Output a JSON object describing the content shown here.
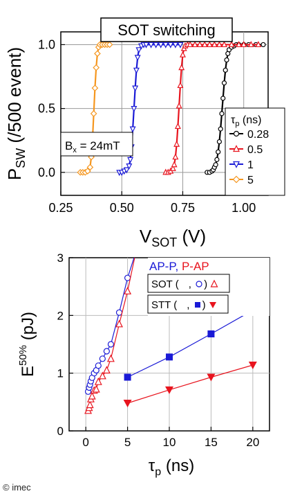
{
  "credit": "© imec",
  "chart_data": [
    {
      "type": "scatter",
      "title": "SOT switching",
      "xlabel_main": "V",
      "xlabel_sub": "SOT",
      "xlabel_unit": " (V)",
      "ylabel_main": "P",
      "ylabel_sub": "SW",
      "ylabel_unit": " (/500 event)",
      "xlim": [
        0.25,
        1.1
      ],
      "ylim": [
        -0.18,
        1.1
      ],
      "xticks": [
        0.25,
        0.5,
        0.75,
        1.0
      ],
      "xtick_labels": [
        "0.25",
        "0.50",
        "0.75",
        "1.00"
      ],
      "yticks": [
        0.0,
        0.5,
        1.0
      ],
      "ytick_labels": [
        "0.0",
        "0.5",
        "1.0"
      ],
      "grid": true,
      "annotation": {
        "main": "B",
        "sub": "x",
        "rest": " = 24mT"
      },
      "legend": {
        "title_main": "τ",
        "title_sub": "p",
        "title_rest": " (ns)",
        "position": "right"
      },
      "series": [
        {
          "name": "0.28",
          "color": "#000000",
          "marker": "circle",
          "x": [
            0.85,
            0.86,
            0.87,
            0.875,
            0.88,
            0.885,
            0.89,
            0.895,
            0.9,
            0.905,
            0.91,
            0.915,
            0.92,
            0.925,
            0.93,
            0.935,
            0.94,
            0.95,
            0.96,
            0.97,
            0.98,
            1.0,
            1.02,
            1.05,
            1.08
          ],
          "y": [
            0.0,
            0.0,
            0.01,
            0.02,
            0.04,
            0.06,
            0.1,
            0.16,
            0.24,
            0.34,
            0.46,
            0.58,
            0.7,
            0.8,
            0.88,
            0.93,
            0.96,
            0.98,
            0.99,
            1.0,
            1.0,
            1.0,
            1.0,
            1.0,
            1.0
          ]
        },
        {
          "name": "0.5",
          "color": "#e8141e",
          "marker": "triangle-up",
          "x": [
            0.68,
            0.69,
            0.7,
            0.71,
            0.715,
            0.72,
            0.725,
            0.73,
            0.735,
            0.74,
            0.745,
            0.75,
            0.755,
            0.76,
            0.77,
            0.78,
            0.8,
            0.82,
            0.84,
            0.86,
            0.88,
            0.9,
            0.92,
            0.95,
            0.98,
            1.0,
            1.03,
            1.06
          ],
          "y": [
            0.0,
            0.0,
            0.01,
            0.03,
            0.06,
            0.12,
            0.22,
            0.36,
            0.52,
            0.68,
            0.82,
            0.92,
            0.97,
            0.99,
            1.0,
            1.0,
            1.0,
            1.0,
            1.0,
            1.0,
            1.0,
            1.0,
            1.0,
            1.0,
            1.0,
            1.0,
            1.0,
            1.0
          ]
        },
        {
          "name": "1",
          "color": "#1a1ad6",
          "marker": "triangle-down",
          "x": [
            0.49,
            0.5,
            0.51,
            0.52,
            0.53,
            0.535,
            0.54,
            0.545,
            0.55,
            0.555,
            0.56,
            0.565,
            0.57,
            0.58,
            0.59,
            0.6,
            0.62,
            0.64,
            0.66,
            0.68,
            0.7,
            0.72,
            0.74
          ],
          "y": [
            0.0,
            0.0,
            0.01,
            0.02,
            0.05,
            0.1,
            0.2,
            0.34,
            0.5,
            0.66,
            0.8,
            0.9,
            0.96,
            0.99,
            1.0,
            1.0,
            1.0,
            1.0,
            1.0,
            1.0,
            1.0,
            1.0,
            1.0
          ],
          "line": "x: [0.49,0.50,0.51,0.52,0.53,0.535,0.54,0.545,0.55,0.555,0.56,0.565,0.57,0.58,0.59,0.60,0.62,0.64,0.66,0.68,0.70,0.72,0.74]"
        },
        {
          "name": "5",
          "color": "#f5961e",
          "marker": "diamond",
          "x": [
            0.33,
            0.34,
            0.35,
            0.36,
            0.37,
            0.375,
            0.38,
            0.385,
            0.39,
            0.395,
            0.4,
            0.405,
            0.41,
            0.42,
            0.43,
            0.44,
            0.45
          ],
          "y": [
            0.0,
            0.0,
            0.0,
            0.01,
            0.04,
            0.12,
            0.26,
            0.46,
            0.66,
            0.82,
            0.93,
            0.98,
            1.0,
            1.0,
            1.0,
            1.0,
            1.0
          ]
        }
      ]
    },
    {
      "type": "line",
      "ylabel_main": "E",
      "ylabel_sup": "50%",
      "ylabel_unit": " (pJ)",
      "xlabel_main": "τ",
      "xlabel_sub": "p",
      "xlabel_unit": " (ns)",
      "xlim": [
        -2,
        22
      ],
      "ylim": [
        0,
        3
      ],
      "xticks": [
        0,
        5,
        10,
        15,
        20
      ],
      "xtick_labels": [
        "0",
        "5",
        "10",
        "15",
        "20"
      ],
      "yticks": [
        0,
        1,
        2,
        3
      ],
      "ytick_labels": [
        "0",
        "1",
        "2",
        "3"
      ],
      "grid": true,
      "legend": {
        "line1_a": "AP-P",
        "line1_sep": ", ",
        "line1_b": "P-AP",
        "line2_prefix": "SOT (",
        "line2_sep": ", ",
        "line2_suffix": ")",
        "line3_prefix": "STT (",
        "line3_sep": ", ",
        "line3_suffix": ")",
        "position": "top-right"
      },
      "series": [
        {
          "name": "SOT AP-P",
          "color": "#1a1ad6",
          "marker": "open-circle",
          "x": [
            0.28,
            0.4,
            0.5,
            0.6,
            0.75,
            1.0,
            1.25,
            1.5,
            2.0,
            2.5,
            3.0,
            4.0,
            5.0,
            6.0
          ],
          "y": [
            0.68,
            0.75,
            0.8,
            0.86,
            0.92,
            1.0,
            1.05,
            1.13,
            1.25,
            1.38,
            1.5,
            2.05,
            2.65,
            3.1
          ]
        },
        {
          "name": "SOT P-AP",
          "color": "#e8141e",
          "marker": "open-triangle",
          "x": [
            0.28,
            0.4,
            0.5,
            0.6,
            0.75,
            1.0,
            1.25,
            1.5,
            2.0,
            2.5,
            3.0,
            4.0,
            5.0,
            6.0
          ],
          "y": [
            0.35,
            0.4,
            0.45,
            0.55,
            0.6,
            0.7,
            0.72,
            0.85,
            0.95,
            1.05,
            1.25,
            1.85,
            2.42,
            3.1
          ]
        },
        {
          "name": "STT AP-P",
          "color": "#1a1ad6",
          "marker": "filled-square",
          "x": [
            5,
            10,
            15,
            20
          ],
          "y": [
            0.93,
            1.28,
            1.68,
            2.09
          ]
        },
        {
          "name": "STT P-AP",
          "color": "#e8141e",
          "marker": "filled-triangle-down",
          "x": [
            5,
            10,
            15,
            20
          ],
          "y": [
            0.48,
            0.71,
            0.93,
            1.14
          ]
        }
      ]
    }
  ]
}
